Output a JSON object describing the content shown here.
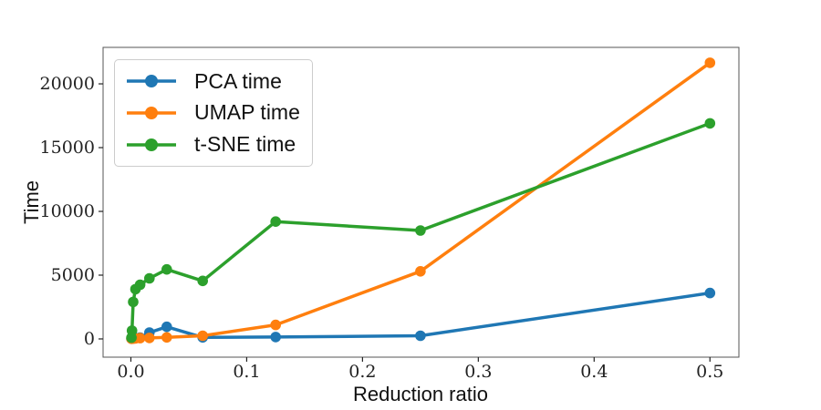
{
  "figure": {
    "background": "#ffffff",
    "spine_color": "#555555",
    "tick_color": "#222222",
    "tick_label_color": "#222222",
    "text_color": "#111111"
  },
  "chart_data": {
    "type": "line",
    "title": "",
    "xlabel": "Reduction ratio",
    "ylabel": "Time",
    "grid": false,
    "legend_position": "upper-left",
    "xlim": [
      -0.024,
      0.525
    ],
    "ylim": [
      -1430,
      22860
    ],
    "x_ticks": [
      {
        "value": 0.0,
        "label": "0.0"
      },
      {
        "value": 0.1,
        "label": "0.1"
      },
      {
        "value": 0.2,
        "label": "0.2"
      },
      {
        "value": 0.3,
        "label": "0.3"
      },
      {
        "value": 0.4,
        "label": "0.4"
      },
      {
        "value": 0.5,
        "label": "0.5"
      }
    ],
    "y_ticks": [
      {
        "value": 0,
        "label": "0"
      },
      {
        "value": 5000,
        "label": "5000"
      },
      {
        "value": 10000,
        "label": "10000"
      },
      {
        "value": 15000,
        "label": "15000"
      },
      {
        "value": 20000,
        "label": "20000"
      }
    ],
    "x": [
      0.0005,
      0.001,
      0.002,
      0.004,
      0.008,
      0.016,
      0.031,
      0.062,
      0.125,
      0.25,
      0.5
    ],
    "series": [
      {
        "name": "PCA time",
        "color": "#1f77b4",
        "values": [
          20,
          30,
          40,
          60,
          100,
          500,
          950,
          120,
          150,
          250,
          3600
        ]
      },
      {
        "name": "UMAP time",
        "color": "#ff7f0e",
        "values": [
          10,
          15,
          25,
          40,
          60,
          80,
          120,
          250,
          1100,
          5300,
          21650
        ]
      },
      {
        "name": "t-SNE time",
        "color": "#2ca02c",
        "values": [
          100,
          650,
          2900,
          3900,
          4250,
          4750,
          5450,
          4550,
          9200,
          8500,
          16900
        ]
      }
    ]
  }
}
